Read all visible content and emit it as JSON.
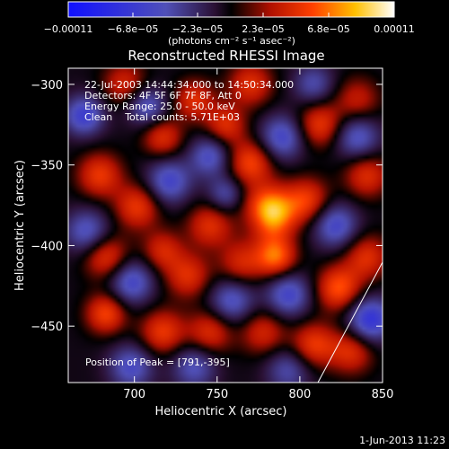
{
  "chart_data": {
    "type": "heatmap",
    "title": "Reconstructed RHESSI Image",
    "xlabel": "Heliocentric X (arcsec)",
    "ylabel": "Heliocentric Y (arcsec)",
    "xlim": [
      660,
      850
    ],
    "ylim": [
      -485,
      -290
    ],
    "x_ticks": [
      700,
      750,
      800,
      850
    ],
    "y_ticks": [
      -450,
      -400,
      -350,
      -300
    ],
    "x_tick_labels": [
      "700",
      "750",
      "800",
      "850"
    ],
    "y_tick_labels": [
      "−450",
      "−400",
      "−350",
      "−300"
    ],
    "colorbar": {
      "range": [
        -0.00011,
        0.00011
      ],
      "tick_labels": [
        "−0.00011",
        "−6.8e−05",
        "−2.3e−05",
        "2.3e−05",
        "6.8e−05",
        "0.00011"
      ],
      "units_label": "(photons cm⁻² s⁻¹ asec⁻²)"
    },
    "annotations": {
      "line1": "22-Jul-2003 14:44:34.000 to 14:50:34.000",
      "line2": "Detectors: 4F 5F 6F 7F 8F, Att 0",
      "line3": "Energy Range: 25.0 - 50.0 keV",
      "line4": "Clean    Total counts: 5.71E+03",
      "peak": "Position of Peak = [791,-395]"
    },
    "peak": [
      791,
      -395
    ],
    "limb_visible": true,
    "timestamp": "1-Jun-2013 11:23"
  }
}
